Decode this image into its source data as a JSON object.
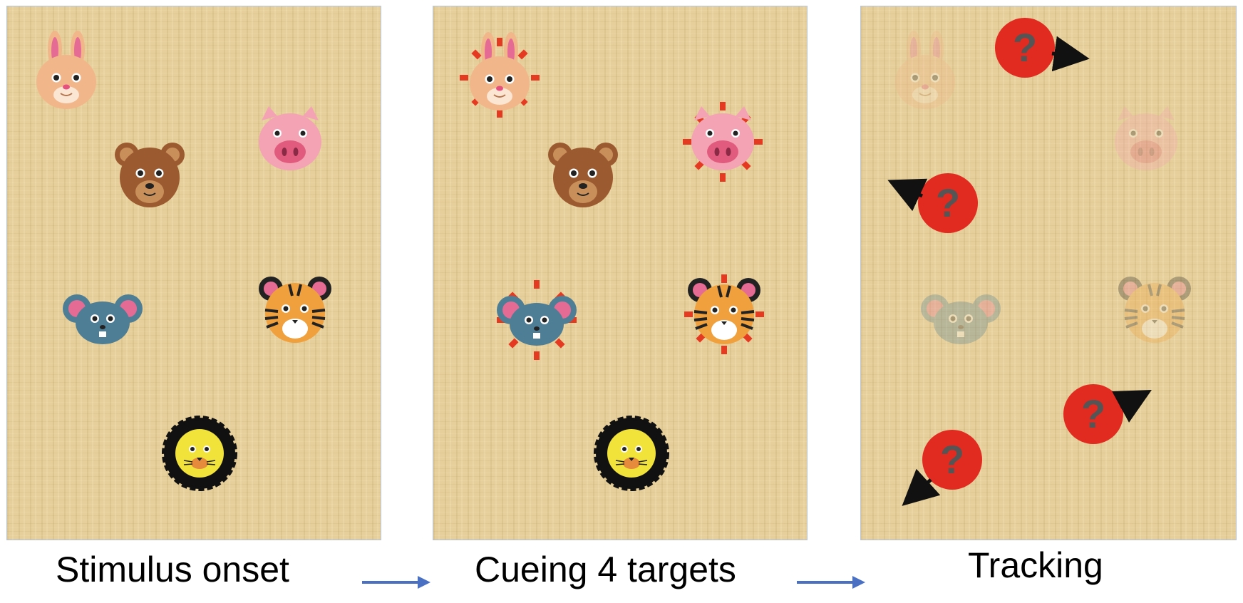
{
  "stages": [
    {
      "caption": "Stimulus onset"
    },
    {
      "caption": "Cueing 4 targets"
    },
    {
      "caption": "Tracking"
    }
  ],
  "tracking_marker_label": "?",
  "colors": {
    "panel_bg": "#e6cf9a",
    "panel_border": "#b9c6e0",
    "cue_marks": "#e53a22",
    "marker_fill": "#e12a20",
    "marker_question": "#555555",
    "flow_arrow": "#4a70c4"
  },
  "animals": [
    "rabbit",
    "bear",
    "pig",
    "mouse",
    "tiger",
    "lion"
  ],
  "cued_animals": [
    "rabbit",
    "pig",
    "mouse",
    "tiger"
  ]
}
